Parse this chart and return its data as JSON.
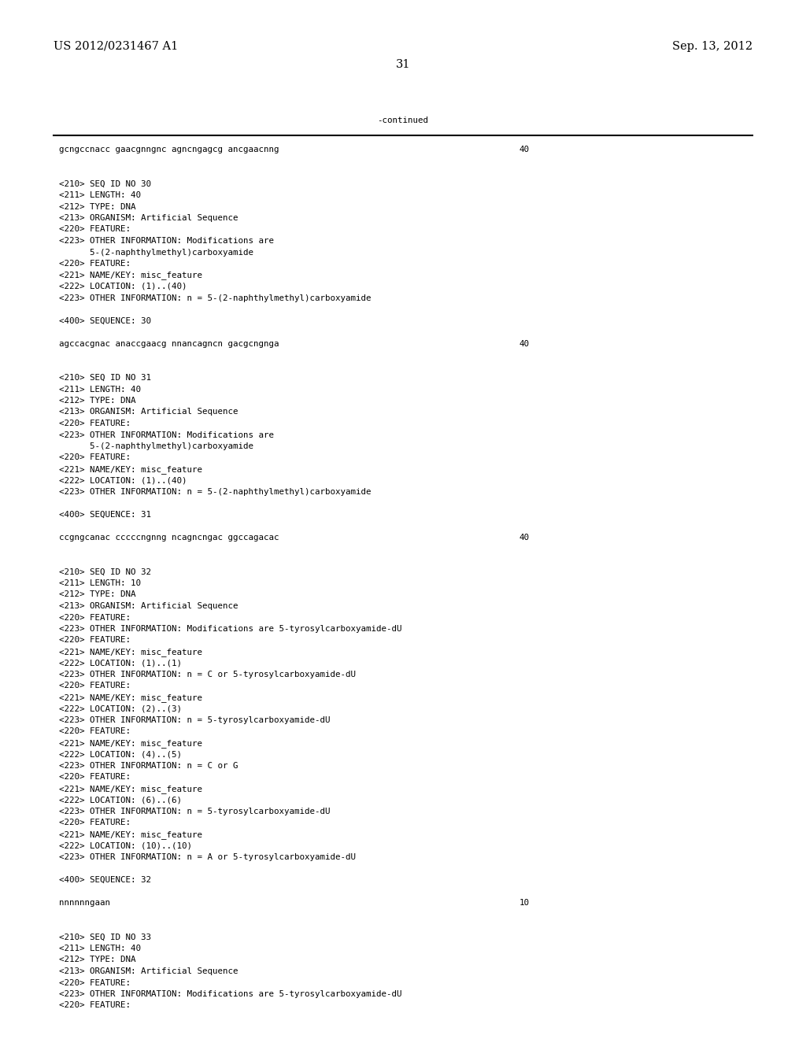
{
  "background_color": "#ffffff",
  "top_left_text": "US 2012/0231467 A1",
  "top_right_text": "Sep. 13, 2012",
  "page_number": "31",
  "continued_text": "-continued",
  "font_size_header": 10.5,
  "font_size_mono": 7.8,
  "lines": [
    {
      "text": "gcngccnacc gaacgnngnc agncngagcg ancgaacnng",
      "right_num": "40"
    },
    {
      "text": ""
    },
    {
      "text": ""
    },
    {
      "text": "<210> SEQ ID NO 30"
    },
    {
      "text": "<211> LENGTH: 40"
    },
    {
      "text": "<212> TYPE: DNA"
    },
    {
      "text": "<213> ORGANISM: Artificial Sequence"
    },
    {
      "text": "<220> FEATURE:"
    },
    {
      "text": "<223> OTHER INFORMATION: Modifications are"
    },
    {
      "text": "      5-(2-naphthylmethyl)carboxyamide"
    },
    {
      "text": "<220> FEATURE:"
    },
    {
      "text": "<221> NAME/KEY: misc_feature"
    },
    {
      "text": "<222> LOCATION: (1)..(40)"
    },
    {
      "text": "<223> OTHER INFORMATION: n = 5-(2-naphthylmethyl)carboxyamide"
    },
    {
      "text": ""
    },
    {
      "text": "<400> SEQUENCE: 30"
    },
    {
      "text": ""
    },
    {
      "text": "agccacgnac anaccgaacg nnancagncn gacgcngnga",
      "right_num": "40"
    },
    {
      "text": ""
    },
    {
      "text": ""
    },
    {
      "text": "<210> SEQ ID NO 31"
    },
    {
      "text": "<211> LENGTH: 40"
    },
    {
      "text": "<212> TYPE: DNA"
    },
    {
      "text": "<213> ORGANISM: Artificial Sequence"
    },
    {
      "text": "<220> FEATURE:"
    },
    {
      "text": "<223> OTHER INFORMATION: Modifications are"
    },
    {
      "text": "      5-(2-naphthylmethyl)carboxyamide"
    },
    {
      "text": "<220> FEATURE:"
    },
    {
      "text": "<221> NAME/KEY: misc_feature"
    },
    {
      "text": "<222> LOCATION: (1)..(40)"
    },
    {
      "text": "<223> OTHER INFORMATION: n = 5-(2-naphthylmethyl)carboxyamide"
    },
    {
      "text": ""
    },
    {
      "text": "<400> SEQUENCE: 31"
    },
    {
      "text": ""
    },
    {
      "text": "ccgngcanac cccccngnng ncagncngac ggccagacac",
      "right_num": "40"
    },
    {
      "text": ""
    },
    {
      "text": ""
    },
    {
      "text": "<210> SEQ ID NO 32"
    },
    {
      "text": "<211> LENGTH: 10"
    },
    {
      "text": "<212> TYPE: DNA"
    },
    {
      "text": "<213> ORGANISM: Artificial Sequence"
    },
    {
      "text": "<220> FEATURE:"
    },
    {
      "text": "<223> OTHER INFORMATION: Modifications are 5-tyrosylcarboxyamide-dU"
    },
    {
      "text": "<220> FEATURE:"
    },
    {
      "text": "<221> NAME/KEY: misc_feature"
    },
    {
      "text": "<222> LOCATION: (1)..(1)"
    },
    {
      "text": "<223> OTHER INFORMATION: n = C or 5-tyrosylcarboxyamide-dU"
    },
    {
      "text": "<220> FEATURE:"
    },
    {
      "text": "<221> NAME/KEY: misc_feature"
    },
    {
      "text": "<222> LOCATION: (2)..(3)"
    },
    {
      "text": "<223> OTHER INFORMATION: n = 5-tyrosylcarboxyamide-dU"
    },
    {
      "text": "<220> FEATURE:"
    },
    {
      "text": "<221> NAME/KEY: misc_feature"
    },
    {
      "text": "<222> LOCATION: (4)..(5)"
    },
    {
      "text": "<223> OTHER INFORMATION: n = C or G"
    },
    {
      "text": "<220> FEATURE:"
    },
    {
      "text": "<221> NAME/KEY: misc_feature"
    },
    {
      "text": "<222> LOCATION: (6)..(6)"
    },
    {
      "text": "<223> OTHER INFORMATION: n = 5-tyrosylcarboxyamide-dU"
    },
    {
      "text": "<220> FEATURE:"
    },
    {
      "text": "<221> NAME/KEY: misc_feature"
    },
    {
      "text": "<222> LOCATION: (10)..(10)"
    },
    {
      "text": "<223> OTHER INFORMATION: n = A or 5-tyrosylcarboxyamide-dU"
    },
    {
      "text": ""
    },
    {
      "text": "<400> SEQUENCE: 32"
    },
    {
      "text": ""
    },
    {
      "text": "nnnnnngaan",
      "right_num": "10"
    },
    {
      "text": ""
    },
    {
      "text": ""
    },
    {
      "text": "<210> SEQ ID NO 33"
    },
    {
      "text": "<211> LENGTH: 40"
    },
    {
      "text": "<212> TYPE: DNA"
    },
    {
      "text": "<213> ORGANISM: Artificial Sequence"
    },
    {
      "text": "<220> FEATURE:"
    },
    {
      "text": "<223> OTHER INFORMATION: Modifications are 5-tyrosylcarboxyamide-dU"
    },
    {
      "text": "<220> FEATURE:"
    }
  ]
}
